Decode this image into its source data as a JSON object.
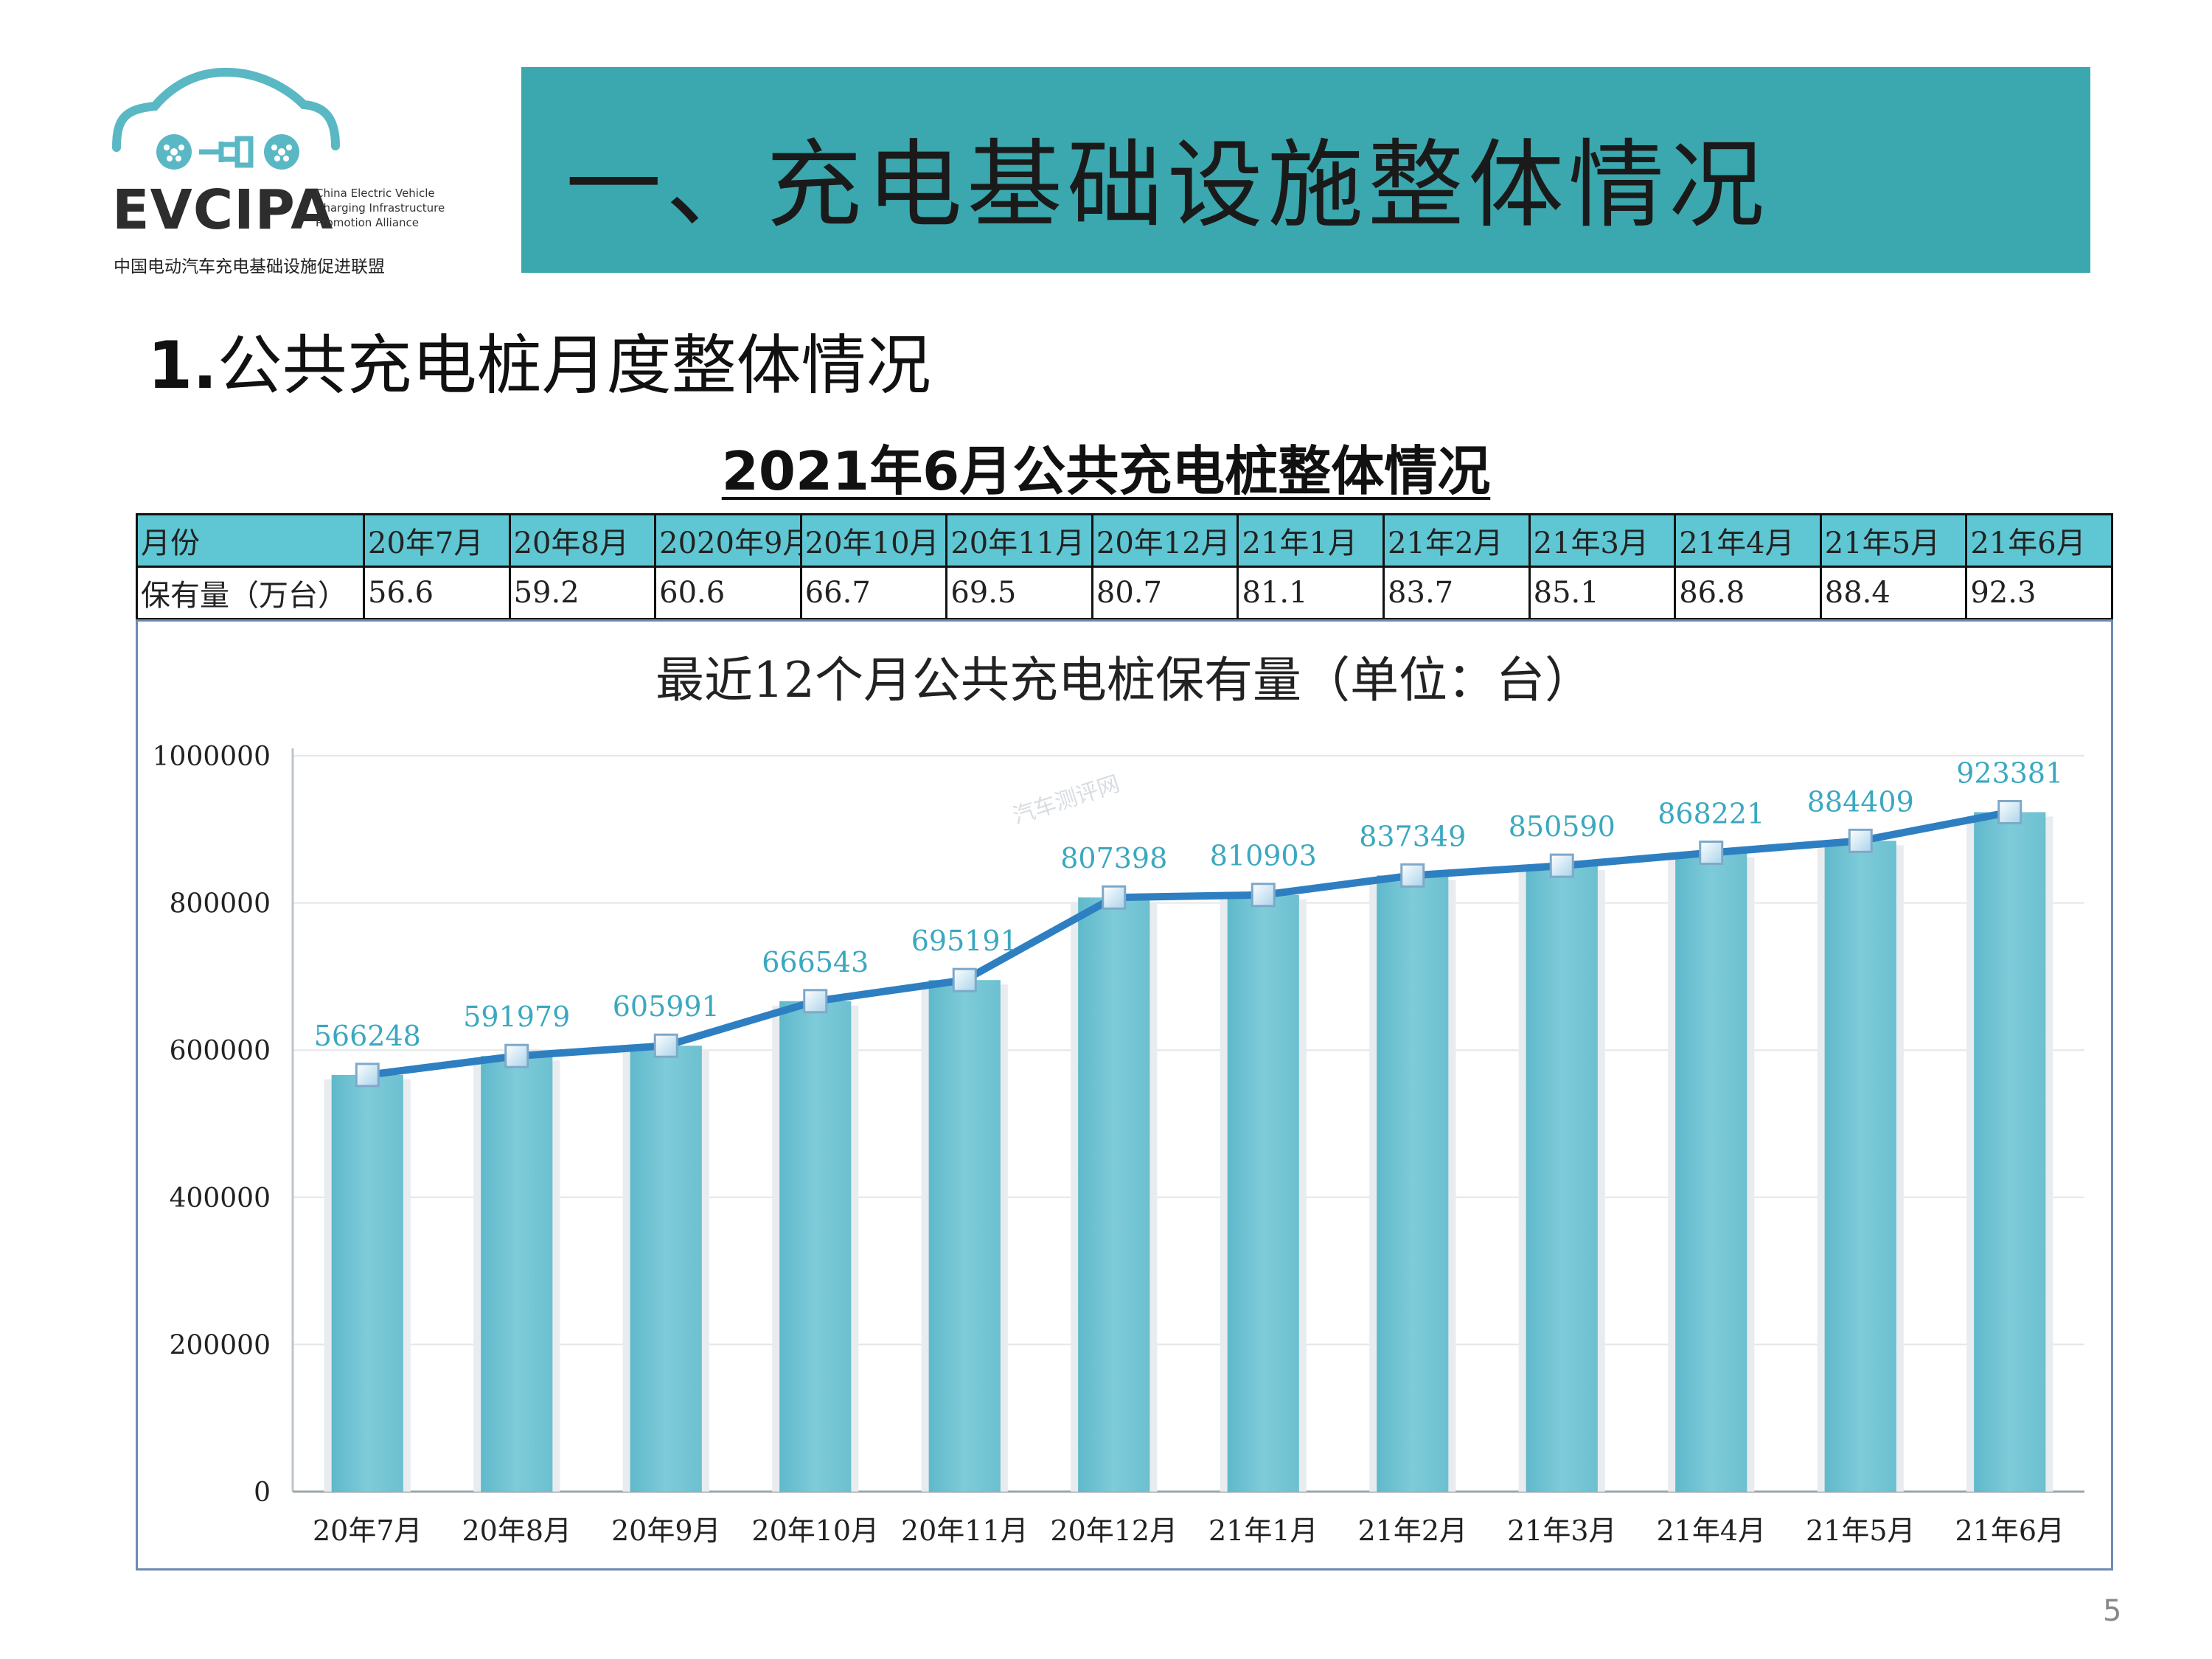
{
  "logo": {
    "text": "EVCIPA",
    "subtitle_lines": [
      "China Electric Vehicle",
      "Charging Infrastructure",
      "Promotion Alliance"
    ],
    "chinese_name": "中国电动汽车充电基础设施促进联盟",
    "color": "#5ab8c4"
  },
  "header": {
    "title": "一、充电基础设施整体情况",
    "banner_color": "#3aa8ae"
  },
  "section": {
    "number": "1.",
    "title": "公共充电桩月度整体情况"
  },
  "table": {
    "title": "2021年6月公共充电桩整体情况",
    "row_header_label": "月份",
    "row_value_label": "保有量（万台）",
    "months": [
      "20年7月",
      "20年8月",
      "2020年9月",
      "20年10月",
      "20年11月",
      "20年12月",
      "21年1月",
      "21年2月",
      "21年3月",
      "21年4月",
      "21年5月",
      "21年6月"
    ],
    "values": [
      "56.6",
      "59.2",
      "60.6",
      "66.7",
      "69.5",
      "80.7",
      "81.1",
      "83.7",
      "85.1",
      "86.8",
      "88.4",
      "92.3"
    ],
    "header_color": "#5fc7d3"
  },
  "chart_data": {
    "type": "bar",
    "title": "最近12个月公共充电桩保有量（单位：台）",
    "categories": [
      "20年7月",
      "20年8月",
      "20年9月",
      "20年10月",
      "20年11月",
      "20年12月",
      "21年1月",
      "21年2月",
      "21年3月",
      "21年4月",
      "21年5月",
      "21年6月"
    ],
    "values": [
      566248,
      591979,
      605991,
      666543,
      695191,
      807398,
      810903,
      837349,
      850590,
      868221,
      884409,
      923381
    ],
    "overlay_line": true,
    "data_labels": [
      "566248",
      "591979",
      "605991",
      "666543",
      "695191",
      "807398",
      "810903",
      "837349",
      "850590",
      "868221",
      "884409",
      "923381"
    ],
    "yticks": [
      0,
      200000,
      400000,
      600000,
      800000,
      1000000
    ],
    "ytick_labels": [
      "0",
      "200000",
      "400000",
      "600000",
      "800000",
      "1000000"
    ],
    "ylim": [
      0,
      1000000
    ],
    "grid": true,
    "legend": "none",
    "bar_color": "#7ecbd9",
    "line_color": "#2e7fc1",
    "label_color": "#3aa8c0"
  },
  "watermark": "汽车测评网",
  "page_number": "5"
}
